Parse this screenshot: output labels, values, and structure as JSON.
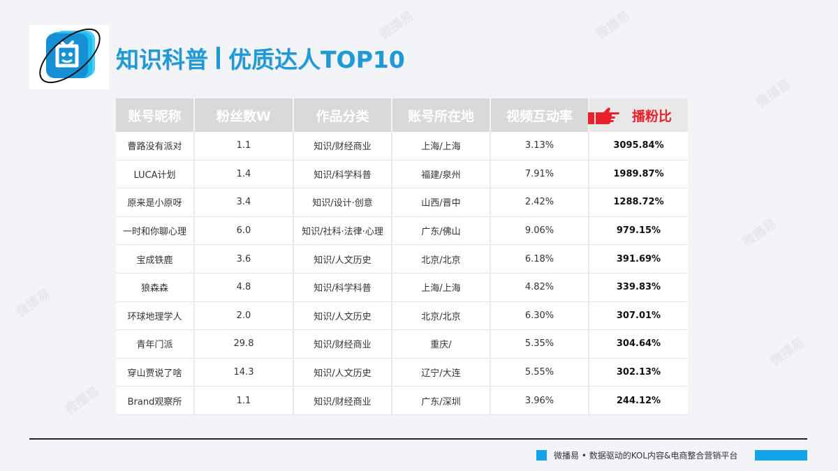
{
  "header": {
    "title_part1": "知识科普",
    "title_part2": "优质达人TOP10"
  },
  "table": {
    "columns": [
      "账号昵称",
      "粉丝数W",
      "作品分类",
      "账号所在地",
      "视频互动率",
      "播粉比"
    ],
    "rows": [
      {
        "name": "曹路没有派对",
        "fans": "1.1",
        "category": "知识/财经商业",
        "location": "上海/上海",
        "interaction": "3.13%",
        "ratio": "3095.84%"
      },
      {
        "name": "LUCA计划",
        "fans": "1.4",
        "category": "知识/科学科普",
        "location": "福建/泉州",
        "interaction": "7.91%",
        "ratio": "1989.87%"
      },
      {
        "name": "原来是小原呀",
        "fans": "3.4",
        "category": "知识/设计·创意",
        "location": "山西/晋中",
        "interaction": "2.42%",
        "ratio": "1288.72%"
      },
      {
        "name": "一时和你聊心理",
        "fans": "6.0",
        "category": "知识/社科·法律·心理",
        "location": "广东/佛山",
        "interaction": "9.06%",
        "ratio": "979.15%"
      },
      {
        "name": "宝成铁鹿",
        "fans": "3.6",
        "category": "知识/人文历史",
        "location": "北京/北京",
        "interaction": "6.18%",
        "ratio": "391.69%"
      },
      {
        "name": "狼森森",
        "fans": "4.8",
        "category": "知识/科学科普",
        "location": "上海/上海",
        "interaction": "4.82%",
        "ratio": "339.83%"
      },
      {
        "name": "环球地理学人",
        "fans": "2.0",
        "category": "知识/人文历史",
        "location": "北京/北京",
        "interaction": "6.30%",
        "ratio": "307.01%"
      },
      {
        "name": "青年门派",
        "fans": "29.8",
        "category": "知识/财经商业",
        "location": "重庆/",
        "interaction": "5.35%",
        "ratio": "304.64%"
      },
      {
        "name": "穿山贾说了啥",
        "fans": "14.3",
        "category": "知识/人文历史",
        "location": "辽宁/大连",
        "interaction": "5.55%",
        "ratio": "302.13%"
      },
      {
        "name": "Brand观察所",
        "fans": "1.1",
        "category": "知识/财经商业",
        "location": "广东/深圳",
        "interaction": "3.96%",
        "ratio": "244.12%"
      }
    ]
  },
  "footer": {
    "text": "微播易 • 数据驱动的KOL内容&电商整合营销平台"
  },
  "watermark": {
    "text": "微播易"
  },
  "colors": {
    "accent": "#1e9ad6",
    "highlight": "#e8212a",
    "footer_blue": "#14a3e8"
  }
}
